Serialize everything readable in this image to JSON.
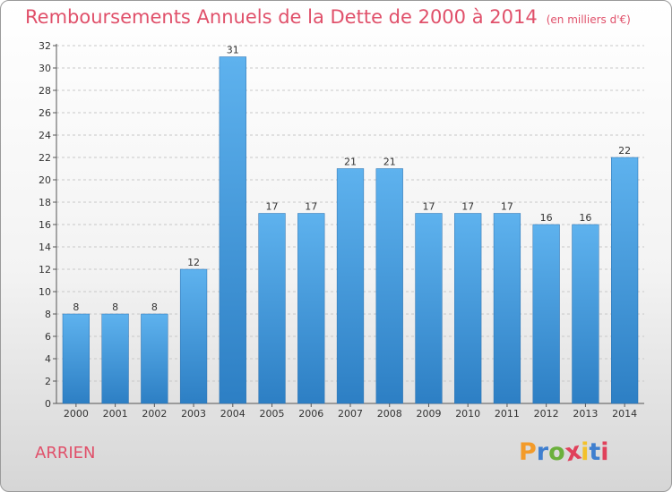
{
  "title": "Remboursements Annuels de la Dette de 2000 à 2014",
  "subtitle": "(en milliers d'€)",
  "commune": "ARRIEN",
  "logo": {
    "letters": [
      "P",
      "r",
      "o",
      "x",
      "i",
      "t",
      "i"
    ],
    "colors": [
      "#f39b2a",
      "#3f7fcf",
      "#6bb03c",
      "#e0415b",
      "#f3c12a",
      "#3f7fcf",
      "#e0415b"
    ]
  },
  "colors": {
    "title": "#e0506a",
    "bar_light": "#5eb2ee",
    "bar_dark": "#2d7fc4",
    "grid": "#c8c8c8"
  },
  "chart_data": {
    "type": "bar",
    "title": "Remboursements Annuels de la Dette de 2000 à 2014",
    "subtitle": "(en milliers d'€)",
    "xlabel": "",
    "ylabel": "",
    "categories": [
      "2000",
      "2001",
      "2002",
      "2003",
      "2004",
      "2005",
      "2006",
      "2007",
      "2008",
      "2009",
      "2010",
      "2011",
      "2012",
      "2013",
      "2014"
    ],
    "values": [
      8,
      8,
      8,
      12,
      31,
      17,
      17,
      21,
      21,
      17,
      17,
      17,
      16,
      16,
      22
    ],
    "ylim": [
      0,
      32
    ],
    "yticks": [
      0,
      2,
      4,
      6,
      8,
      10,
      12,
      14,
      16,
      18,
      20,
      22,
      24,
      26,
      28,
      30,
      32
    ],
    "grid": true,
    "data_labels": true
  }
}
